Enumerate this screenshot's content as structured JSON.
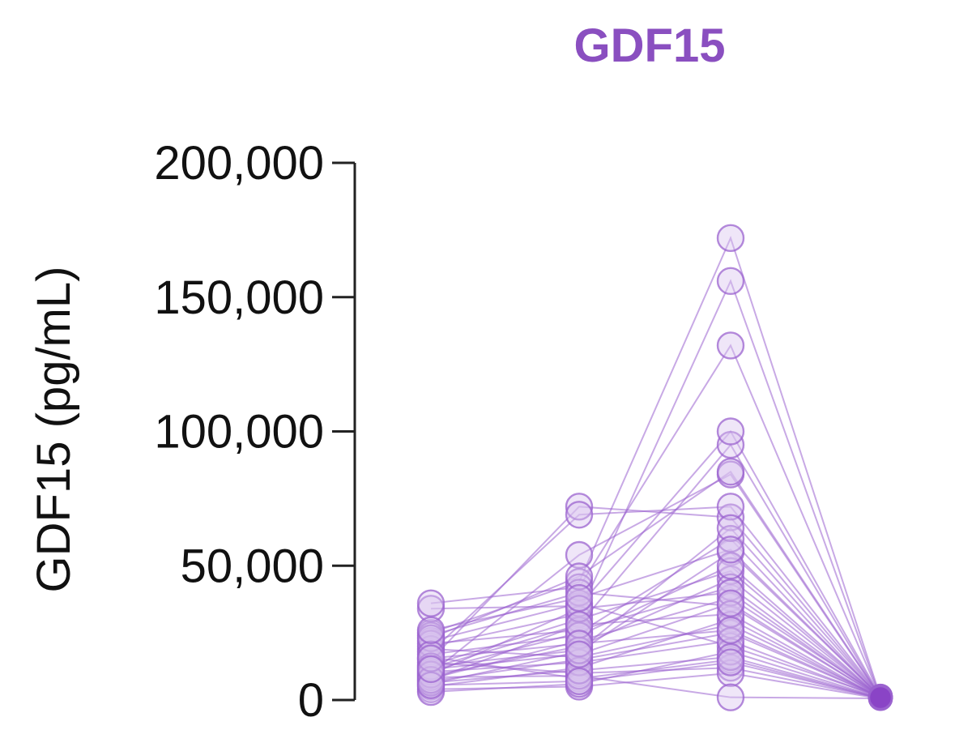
{
  "chart_data": {
    "type": "scatter",
    "title": "GDF15",
    "xlabel": "",
    "ylabel": "GDF15 (pg/mL)",
    "ylim": [
      0,
      200000
    ],
    "yticks": [
      0,
      50000,
      100000,
      150000,
      200000
    ],
    "ytick_labels": [
      "0",
      "50,000",
      "100,000",
      "150,000",
      "200,000"
    ],
    "grid": false,
    "categories": [
      "",
      "",
      "",
      ""
    ],
    "colors": {
      "title": "#8a4fc0",
      "line": "#9b63cf",
      "marker_fill": "#d8c3ee",
      "marker_stroke": "#9b63cf",
      "marker_fill_dark": "#8a45c6"
    },
    "paired_series": [
      [
        8000,
        22000,
        38000,
        1500
      ],
      [
        6000,
        18000,
        55000,
        1200
      ],
      [
        12000,
        28000,
        95000,
        900
      ],
      [
        20000,
        32000,
        156000,
        800
      ],
      [
        25000,
        44000,
        172000,
        1100
      ],
      [
        34000,
        35000,
        100000,
        1300
      ],
      [
        36000,
        42000,
        132000,
        900
      ],
      [
        10000,
        54000,
        84000,
        1000
      ],
      [
        15000,
        72000,
        68000,
        1200
      ],
      [
        18000,
        69000,
        72000,
        1400
      ],
      [
        5000,
        12000,
        30000,
        700
      ],
      [
        7000,
        15000,
        25000,
        1000
      ],
      [
        9000,
        20000,
        45000,
        1100
      ],
      [
        11000,
        25000,
        60000,
        800
      ],
      [
        13000,
        30000,
        48000,
        900
      ],
      [
        22000,
        36000,
        20000,
        1300
      ],
      [
        24000,
        40000,
        35000,
        1000
      ],
      [
        16000,
        8000,
        15000,
        600
      ],
      [
        14000,
        10000,
        12000,
        700
      ],
      [
        4000,
        5000,
        10000,
        500
      ],
      [
        3000,
        6000,
        18000,
        800
      ],
      [
        8500,
        9000,
        1000,
        600
      ],
      [
        19000,
        16000,
        28000,
        1100
      ],
      [
        21000,
        26000,
        42000,
        1000
      ],
      [
        23000,
        46000,
        85000,
        1200
      ],
      [
        10500,
        14000,
        22000,
        900
      ],
      [
        6500,
        11000,
        16000,
        800
      ],
      [
        17000,
        24000,
        50000,
        1000
      ],
      [
        12500,
        18500,
        64000,
        1100
      ],
      [
        9500,
        34000,
        40000,
        900
      ],
      [
        7500,
        28000,
        32000,
        700
      ],
      [
        26000,
        38000,
        56000,
        1200
      ],
      [
        5500,
        7000,
        14000,
        600
      ],
      [
        15500,
        21000,
        26000,
        1000
      ],
      [
        11500,
        17000,
        36000,
        900
      ]
    ]
  }
}
